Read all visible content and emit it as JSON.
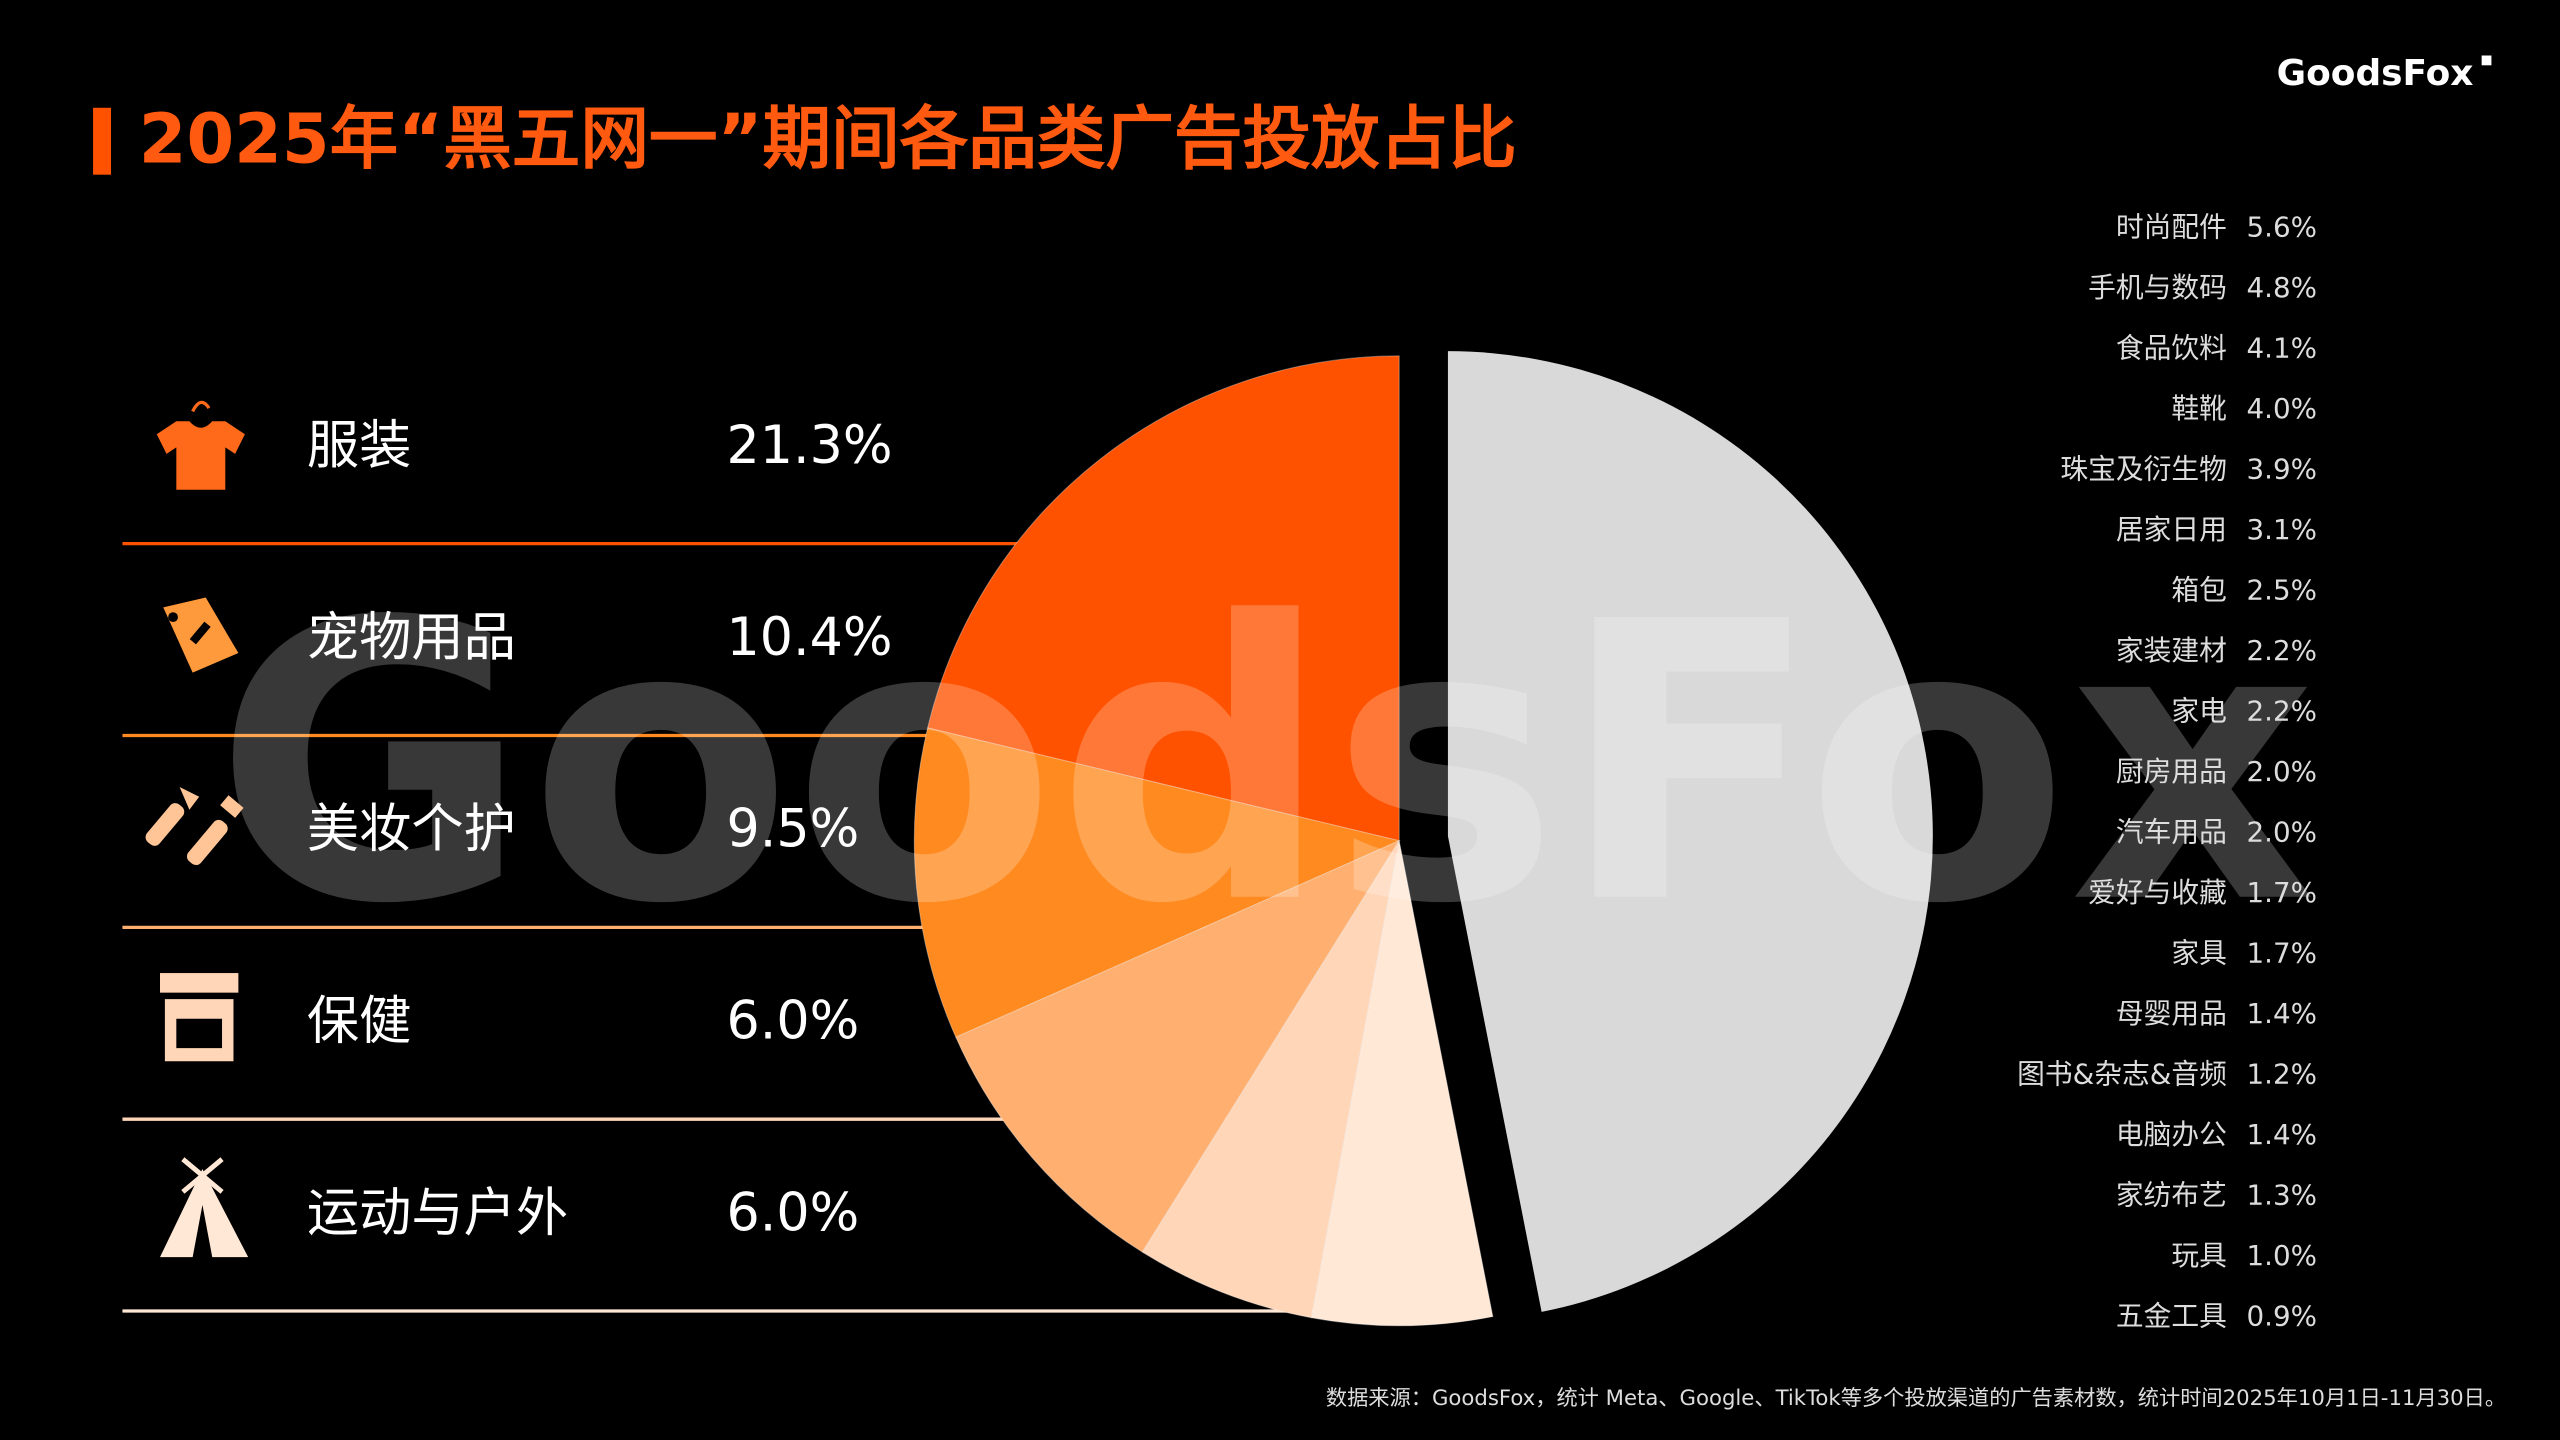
{
  "brand": "GoodsFox",
  "chart_data": {
    "type": "pie",
    "title": "2025年“黑五网一”期间各品类广告投放占比",
    "categories": [
      "服装",
      "宠物用品",
      "美妆个护",
      "保健",
      "运动与户外"
    ],
    "values": [
      21.3,
      10.4,
      9.5,
      6.0,
      6.0
    ],
    "value_labels": [
      "21.3%",
      "10.4%",
      "9.5%",
      "6.0%",
      "6.0%"
    ],
    "colors": [
      "#ff5200",
      "#ff8a20",
      "#ffb070",
      "#ffd6b8",
      "#ffe8d6"
    ],
    "minor_categories": {
      "color": "#d9d9d9",
      "categories": [
        "时尚配件",
        "手机与数码",
        "食品饮料",
        "鞋靴",
        "珠宝及衍生物",
        "居家日用",
        "箱包",
        "家装建材",
        "家电",
        "厨房用品",
        "汽车用品",
        "爱好与收藏",
        "家具",
        "母婴用品",
        "图书&杂志&音频",
        "电脑办公",
        "家纺布艺",
        "玩具",
        "五金工具"
      ],
      "values": [
        5.6,
        4.8,
        4.1,
        4.0,
        3.9,
        3.1,
        2.5,
        2.2,
        2.2,
        2.0,
        2.0,
        1.7,
        1.7,
        1.4,
        1.2,
        1.4,
        1.3,
        1.0,
        0.9
      ],
      "value_labels": [
        "5.6%",
        "4.8%",
        "4.1%",
        "4.0%",
        "3.9%",
        "3.1%",
        "2.5%",
        "2.2%",
        "2.2%",
        "2.0%",
        "2.0%",
        "1.7%",
        "1.7%",
        "1.4%",
        "1.2%",
        "1.4%",
        "1.3%",
        "1.0%",
        "0.9%"
      ]
    }
  },
  "source": "数据来源：GoodsFox，统计 Meta、Google、TikTok等多个投放渠道的广告素材数，统计时间2025年10月1日-11月30日。"
}
